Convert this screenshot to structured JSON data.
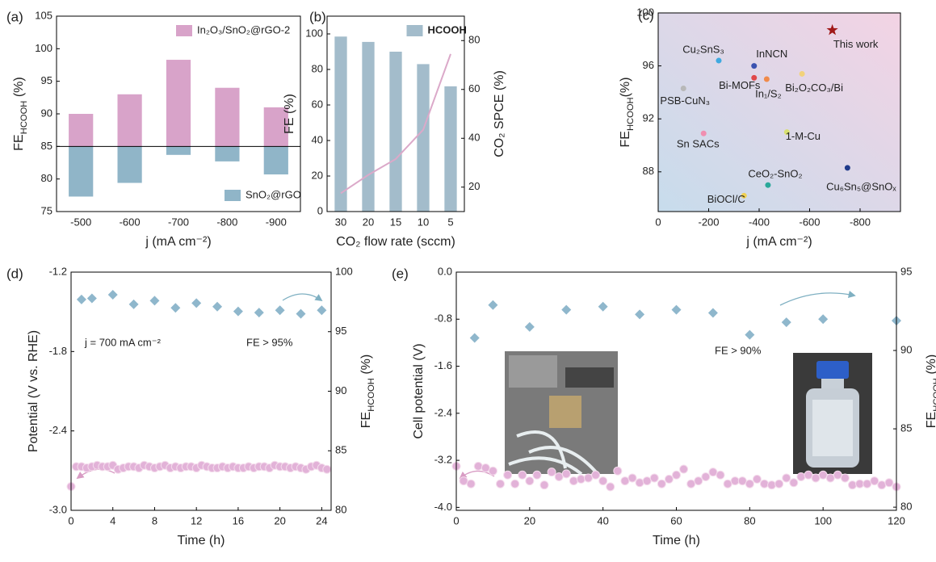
{
  "chart_data": [
    {
      "type": "bar",
      "label": "(a)",
      "ylabel": [
        "FE",
        "HCOOH",
        " (%)"
      ],
      "xlabel": "j (mA cm⁻²)",
      "categories": [
        "-500",
        "-600",
        "-700",
        "-800",
        "-900"
      ],
      "baseline": 85,
      "series": [
        {
          "name": "In₂O₃/SnO₂@rGO-2",
          "color": "#d8a3c9",
          "values": [
            90,
            93,
            98.3,
            94,
            91
          ],
          "legend": "upper right"
        },
        {
          "name": "SnO₂@rGO",
          "color": "#90b5c8",
          "values": [
            77.3,
            79.4,
            83.7,
            82.7,
            80.7
          ],
          "legend": "lower right"
        }
      ],
      "ylim": [
        75,
        105
      ],
      "yticks": [
        75,
        80,
        85,
        90,
        95,
        100,
        105
      ]
    },
    {
      "type": "bar",
      "label": "(b)",
      "ylabel": "FE (%)",
      "y2label": "CO₂ SPCE (%)",
      "xlabel": "CO₂ flow rate (sccm)",
      "categories": [
        "30",
        "20",
        "15",
        "10",
        "5"
      ],
      "series": [
        {
          "name": "HCOOH",
          "color": "#a3bccb",
          "values": [
            98.5,
            95.5,
            90,
            83,
            70.5
          ],
          "legend": "upper right"
        },
        {
          "type": "line",
          "axis": "y2",
          "color": "#dba9c9",
          "values": [
            17.5,
            25,
            31.5,
            43.5,
            74.5
          ]
        }
      ],
      "ylim": [
        0,
        110
      ],
      "yticks": [
        0,
        20,
        40,
        60,
        80,
        100
      ],
      "y2lim": [
        10,
        90
      ],
      "y2ticks": [
        20,
        40,
        60,
        80
      ]
    },
    {
      "type": "scatter",
      "label": "(c)",
      "ylabel": [
        "FE",
        "HCOOH",
        "(%)"
      ],
      "xlabel": "j (mA cm⁻²)",
      "background_gradient": [
        "#c7dcec",
        "#f3d3e4"
      ],
      "points": [
        {
          "label": "Cu₂SnS₃",
          "x": -240,
          "y": 96.4,
          "color": "#3fa9e0"
        },
        {
          "label": "InNCN",
          "x": -380,
          "y": 96.0,
          "color": "#3a52b0"
        },
        {
          "label": "Bi-MOFs",
          "x": -380,
          "y": 95.1,
          "color": "#e0484a"
        },
        {
          "label": "In₁/S₂",
          "x": -430,
          "y": 95.0,
          "color": "#f08a4a"
        },
        {
          "label": "Bi₂O₂CO₃/Bi",
          "x": -570,
          "y": 95.4,
          "color": "#f2d27a"
        },
        {
          "label": "PSB-CuN₃",
          "x": -100,
          "y": 94.3,
          "color": "#b8b8b8"
        },
        {
          "label": "Sn SACs",
          "x": -180,
          "y": 90.9,
          "color": "#f08fb0"
        },
        {
          "label": "1-M-Cu",
          "x": -510,
          "y": 91.0,
          "color": "#d8e070"
        },
        {
          "label": "CeO₂-SnO₂",
          "x": -435,
          "y": 87.0,
          "color": "#2aa89a"
        },
        {
          "label": "BiOCl/C",
          "x": -340,
          "y": 86.2,
          "color": "#f0d050"
        },
        {
          "label": "Cu₆Sn₅@SnOₓ",
          "x": -750,
          "y": 88.3,
          "color": "#1f3a8a"
        },
        {
          "label": "This work",
          "x": -690,
          "y": 98.7,
          "color": "#a01818",
          "marker": "star"
        }
      ],
      "xlim": [
        0,
        -960
      ],
      "xticks": [
        0,
        -200,
        -400,
        -600,
        -800
      ],
      "ylim": [
        85,
        100
      ],
      "yticks": [
        88,
        92,
        96,
        100
      ]
    },
    {
      "type": "scatter",
      "label": "(d)",
      "ylabel": "Potential (V vs. RHE)",
      "y2label": [
        "FE",
        "HCOOH",
        " (%)"
      ],
      "xlabel": "Time (h)",
      "annotations": [
        "j = 700 mA cm⁻²",
        "FE > 95%"
      ],
      "series": [
        {
          "marker": "circle",
          "color": "#e2b2d8",
          "x": [
            0,
            0.5,
            1,
            1.5,
            2,
            2.5,
            3,
            3.5,
            4,
            4.5,
            5,
            5.5,
            6,
            6.5,
            7,
            7.5,
            8,
            8.5,
            9,
            9.5,
            10,
            10.5,
            11,
            11.5,
            12,
            12.5,
            13,
            13.5,
            14,
            14.5,
            15,
            15.5,
            16,
            16.5,
            17,
            17.5,
            18,
            18.5,
            19,
            19.5,
            20,
            20.5,
            21,
            21.5,
            22,
            22.5,
            23,
            23.5,
            24,
            24.5
          ],
          "values": [
            -2.82,
            -2.67,
            -2.67,
            -2.68,
            -2.67,
            -2.66,
            -2.67,
            -2.67,
            -2.66,
            -2.69,
            -2.68,
            -2.67,
            -2.67,
            -2.68,
            -2.66,
            -2.67,
            -2.68,
            -2.67,
            -2.66,
            -2.68,
            -2.67,
            -2.68,
            -2.67,
            -2.67,
            -2.68,
            -2.66,
            -2.67,
            -2.68,
            -2.68,
            -2.67,
            -2.68,
            -2.67,
            -2.68,
            -2.68,
            -2.67,
            -2.68,
            -2.67,
            -2.67,
            -2.68,
            -2.66,
            -2.67,
            -2.67,
            -2.68,
            -2.67,
            -2.68,
            -2.69,
            -2.67,
            -2.66,
            -2.68,
            -2.69
          ]
        },
        {
          "marker": "diamond",
          "axis": "y2",
          "color": "#8fb7cc",
          "x": [
            1,
            2,
            4,
            6,
            8,
            10,
            12,
            14,
            16,
            18,
            20,
            22,
            24
          ],
          "values": [
            97.7,
            97.8,
            98.1,
            97.3,
            97.6,
            97.0,
            97.4,
            97.1,
            96.7,
            96.6,
            96.8,
            96.5,
            96.8
          ]
        }
      ],
      "xlim": [
        0,
        24.9
      ],
      "xticks": [
        0,
        4,
        8,
        12,
        16,
        20,
        24
      ],
      "ylim": [
        -3.0,
        -1.2
      ],
      "yticks": [
        -1.2,
        -1.8,
        -2.4,
        {
          "value": -3.0,
          "label": "-3.0"
        }
      ],
      "y2lim": [
        80,
        100
      ],
      "y2ticks": [
        80,
        85,
        90,
        95,
        100
      ]
    },
    {
      "type": "scatter",
      "label": "(e)",
      "ylabel": "Cell potential (V)",
      "y2label": [
        "FE",
        "HCOOH",
        " (%)"
      ],
      "xlabel": "Time (h)",
      "annotations": [
        "FE > 90%"
      ],
      "series": [
        {
          "marker": "circle",
          "color": "#e2b2d8",
          "x": [
            0,
            2,
            4,
            6,
            8,
            10,
            12,
            14,
            16,
            18,
            20,
            22,
            24,
            26,
            28,
            30,
            32,
            34,
            36,
            38,
            40,
            42,
            44,
            46,
            48,
            50,
            52,
            54,
            56,
            58,
            60,
            62,
            64,
            66,
            68,
            70,
            72,
            74,
            76,
            78,
            80,
            82,
            84,
            86,
            88,
            90,
            92,
            94,
            96,
            98,
            100,
            102,
            104,
            106,
            108,
            110,
            112,
            114,
            116,
            118,
            120
          ],
          "values": [
            -3.3,
            -3.55,
            -3.6,
            -3.3,
            -3.33,
            -3.38,
            -3.6,
            -3.45,
            -3.6,
            -3.45,
            -3.55,
            -3.45,
            -3.62,
            -3.4,
            -3.48,
            -3.43,
            -3.55,
            -3.52,
            -3.5,
            -3.45,
            -3.55,
            -3.65,
            -3.38,
            -3.55,
            -3.5,
            -3.58,
            -3.55,
            -3.5,
            -3.6,
            -3.52,
            -3.45,
            -3.35,
            -3.6,
            -3.55,
            -3.48,
            -3.4,
            -3.45,
            -3.6,
            -3.55,
            -3.55,
            -3.6,
            -3.52,
            -3.6,
            -3.62,
            -3.6,
            -3.5,
            -3.58,
            -3.48,
            -3.45,
            -3.5,
            -3.45,
            -3.5,
            -3.45,
            -3.5,
            -3.62,
            -3.6,
            -3.6,
            -3.55,
            -3.62,
            -3.58,
            -3.65
          ]
        },
        {
          "marker": "diamond",
          "axis": "y2",
          "color": "#8fb7cc",
          "x": [
            5,
            10,
            20,
            30,
            40,
            50,
            60,
            70,
            80,
            90,
            100,
            120
          ],
          "values": [
            90.8,
            92.9,
            91.5,
            92.6,
            92.8,
            92.3,
            92.6,
            92.4,
            91.0,
            91.8,
            92.0,
            91.9
          ]
        }
      ],
      "xlim": [
        0,
        120
      ],
      "xticks": [
        0,
        20,
        40,
        60,
        80,
        100,
        120
      ],
      "ylim": [
        -4.05,
        0
      ],
      "yticks": [
        {
          "value": 0,
          "label": "0.0"
        },
        -0.8,
        -1.6,
        -2.4,
        -3.2,
        {
          "value": -4.0,
          "label": "-4.0"
        }
      ],
      "y2lim": [
        79.8,
        95
      ],
      "y2ticks": [
        80,
        85,
        90,
        95
      ]
    }
  ]
}
